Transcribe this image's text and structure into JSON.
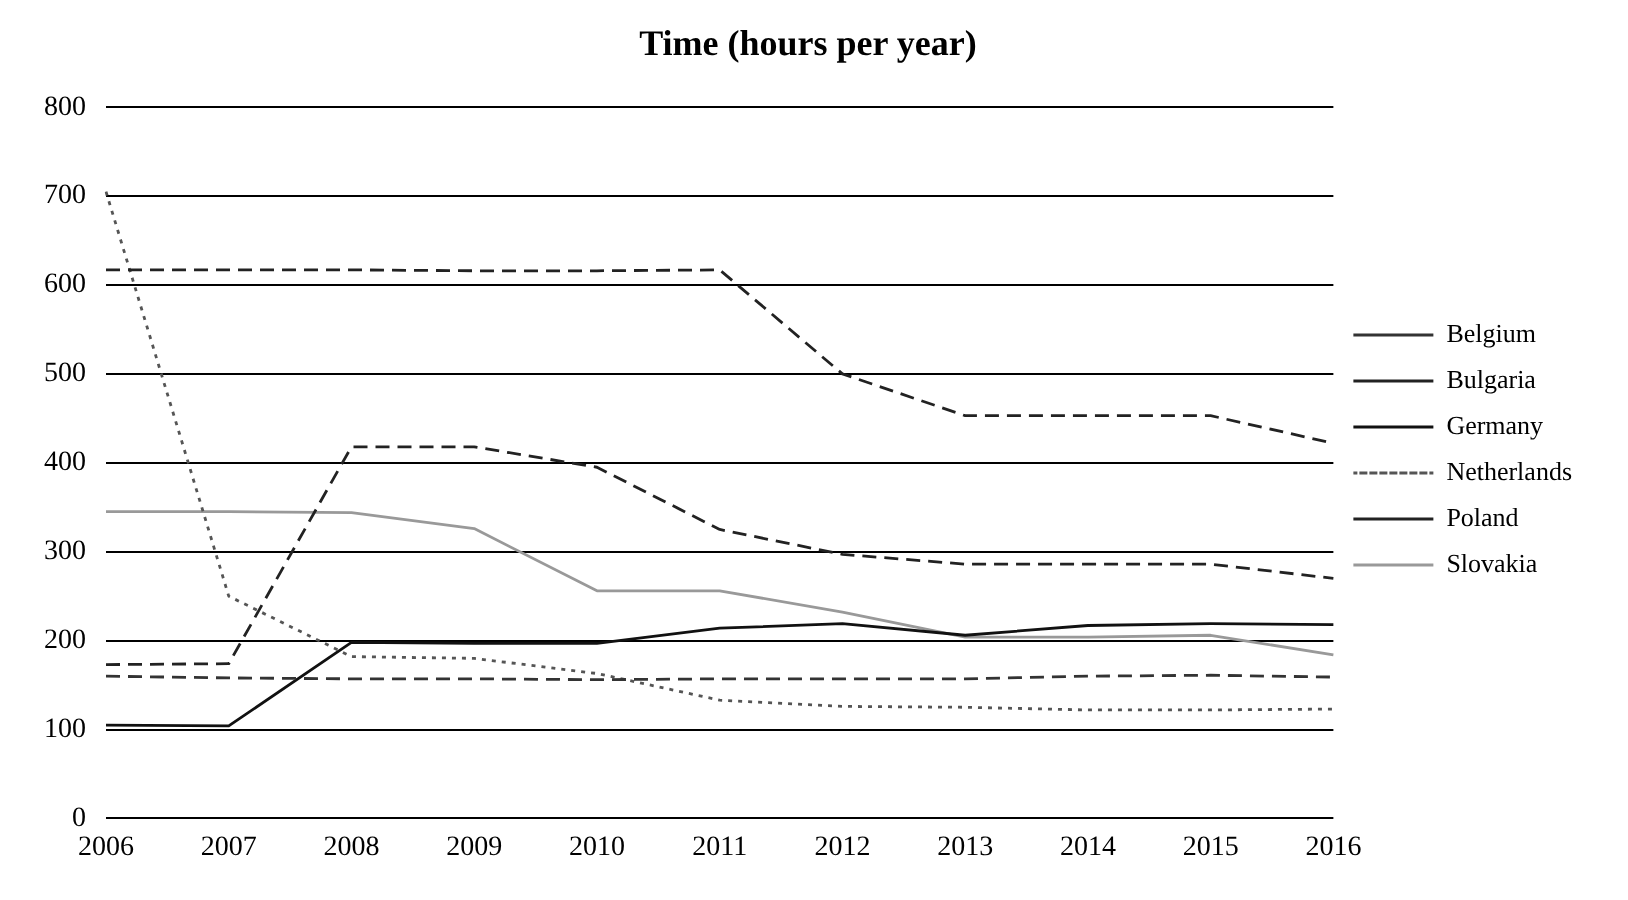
{
  "chart_data": {
    "type": "line",
    "title": "Time (hours per year)",
    "categories": [
      "2006",
      "2007",
      "2008",
      "2009",
      "2010",
      "2011",
      "2012",
      "2013",
      "2014",
      "2015",
      "2016"
    ],
    "series": [
      {
        "name": "Belgium",
        "color": "#333333",
        "line_style": "dashed",
        "values": [
          160,
          158,
          157,
          157,
          156,
          157,
          157,
          157,
          160,
          161,
          159
        ]
      },
      {
        "name": "Bulgaria",
        "color": "#222222",
        "line_style": "dashed",
        "values": [
          617,
          617,
          617,
          616,
          616,
          617,
          500,
          453,
          453,
          453,
          422
        ]
      },
      {
        "name": "Germany",
        "color": "#111111",
        "line_style": "solid",
        "values": [
          105,
          104,
          198,
          197,
          197,
          214,
          219,
          206,
          217,
          219,
          218
        ]
      },
      {
        "name": "Netherlands",
        "color": "#555555",
        "line_style": "dotted",
        "values": [
          705,
          250,
          182,
          180,
          163,
          133,
          126,
          125,
          122,
          122,
          123
        ]
      },
      {
        "name": "Poland",
        "color": "#222222",
        "line_style": "dashed",
        "values": [
          173,
          174,
          418,
          418,
          395,
          325,
          297,
          286,
          286,
          286,
          270
        ]
      },
      {
        "name": "Slovakia",
        "color": "#999999",
        "line_style": "solid",
        "values": [
          345,
          345,
          344,
          326,
          256,
          256,
          232,
          204,
          204,
          206,
          184
        ]
      }
    ],
    "ylim": [
      0,
      800
    ],
    "yticks": [
      0,
      100,
      200,
      300,
      400,
      500,
      600,
      700,
      800
    ],
    "grid": "y",
    "legend": "right",
    "marker": "none"
  }
}
